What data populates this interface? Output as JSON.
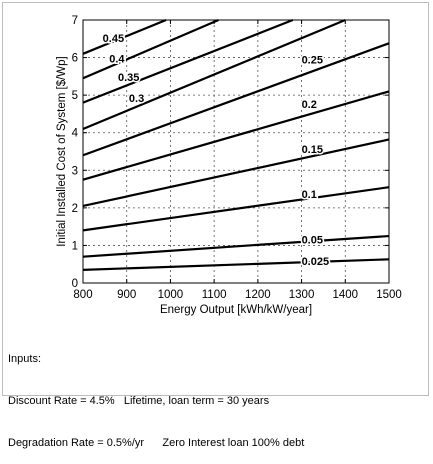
{
  "chart_data": {
    "type": "line",
    "title": "",
    "xlabel": "Energy Output [kWh/kW/year]",
    "ylabel": "Initial Installed Cost of System [$/Wp]",
    "xlim": [
      800,
      1500
    ],
    "ylim": [
      0,
      7
    ],
    "xticks": [
      "800",
      "900",
      "1000",
      "1100",
      "1200",
      "1300",
      "1400",
      "1500"
    ],
    "yticks": [
      "0",
      "1",
      "2",
      "3",
      "4",
      "5",
      "6",
      "7"
    ],
    "grid": true,
    "line_color": "#000000",
    "series": [
      {
        "name": "0.025",
        "x": [
          800,
          1500
        ],
        "y": [
          0.35,
          0.63
        ]
      },
      {
        "name": "0.05",
        "x": [
          800,
          1500
        ],
        "y": [
          0.7,
          1.25
        ]
      },
      {
        "name": "0.1",
        "x": [
          800,
          1500
        ],
        "y": [
          1.4,
          2.55
        ]
      },
      {
        "name": "0.15",
        "x": [
          800,
          1500
        ],
        "y": [
          2.05,
          3.82
        ]
      },
      {
        "name": "0.2",
        "x": [
          800,
          1500
        ],
        "y": [
          2.75,
          5.1
        ]
      },
      {
        "name": "0.25",
        "x": [
          800,
          1500
        ],
        "y": [
          3.4,
          6.38
        ]
      },
      {
        "name": "0.3",
        "x": [
          800,
          1400
        ],
        "y": [
          4.1,
          7.0
        ]
      },
      {
        "name": "0.35",
        "x": [
          800,
          1280
        ],
        "y": [
          4.8,
          7.0
        ]
      },
      {
        "name": "0.4",
        "x": [
          800,
          1110
        ],
        "y": [
          5.45,
          7.0
        ]
      },
      {
        "name": "0.45",
        "x": [
          800,
          990
        ],
        "y": [
          6.1,
          7.0
        ]
      }
    ],
    "labels": [
      {
        "text": "0.025",
        "x": 1300,
        "y": 0.58
      },
      {
        "text": "0.05",
        "x": 1300,
        "y": 1.16
      },
      {
        "text": "0.1",
        "x": 1300,
        "y": 2.37
      },
      {
        "text": "0.15",
        "x": 1300,
        "y": 3.57
      },
      {
        "text": "0.2",
        "x": 1300,
        "y": 4.76
      },
      {
        "text": "0.25",
        "x": 1300,
        "y": 5.95
      },
      {
        "text": "0.3",
        "x": 905,
        "y": 4.93
      },
      {
        "text": "0.35",
        "x": 880,
        "y": 5.48
      },
      {
        "text": "0.4",
        "x": 860,
        "y": 5.97
      },
      {
        "text": "0.45",
        "x": 845,
        "y": 6.52
      }
    ]
  },
  "notes": {
    "line1": "Inputs:",
    "line2": "Discount Rate = 4.5%   Lifetime, loan term = 30 years",
    "line3": "Degradation Rate = 0.5%/yr      Zero Interest loan 100% debt"
  }
}
